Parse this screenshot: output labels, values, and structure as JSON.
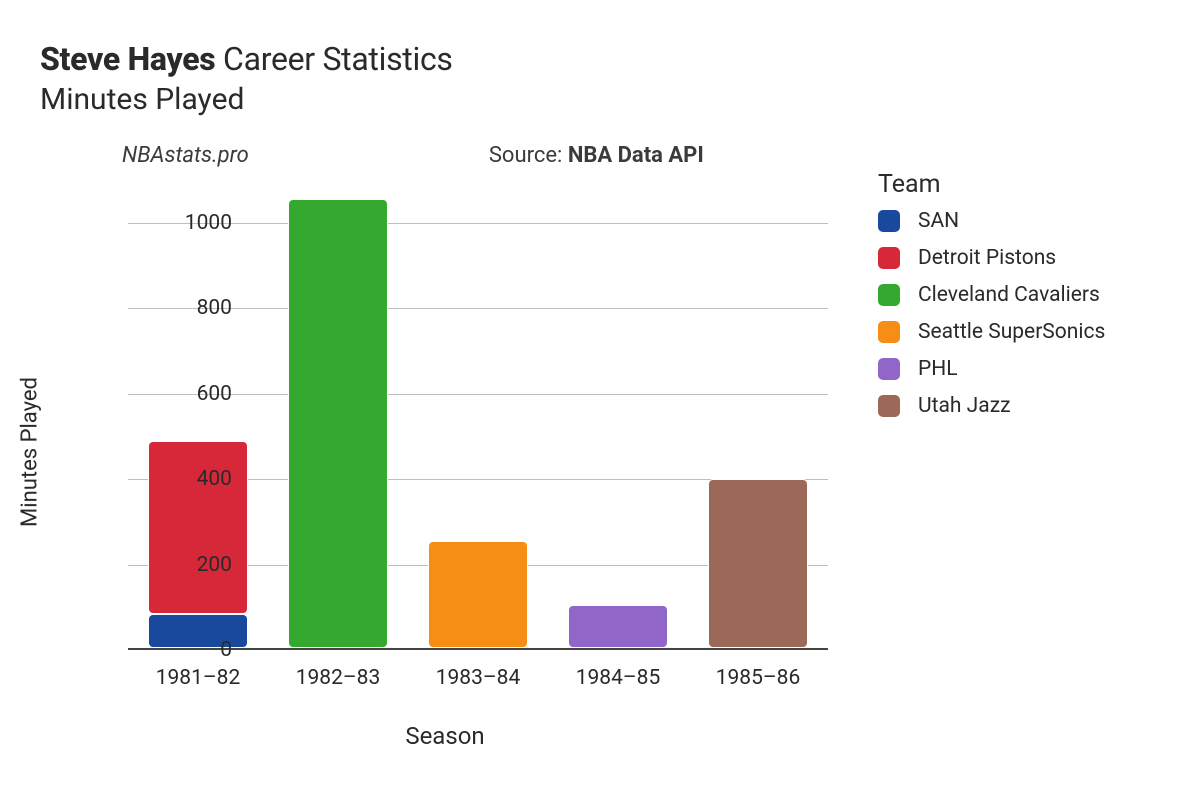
{
  "title": {
    "player_name": "Steve Hayes",
    "rest": " Career Statistics",
    "subtitle": "Minutes Played"
  },
  "watermark": "NBAstats.pro",
  "source_prefix": "Source: ",
  "source_name": "NBA Data API",
  "chart": {
    "type": "stacked-bar",
    "xlabel": "Season",
    "ylabel": "Minutes Played",
    "ylim": [
      0,
      1100
    ],
    "ytick_step": 200,
    "yticks": [
      0,
      200,
      400,
      600,
      800,
      1000
    ],
    "categories": [
      "1981–82",
      "1982–83",
      "1983–84",
      "1984–85",
      "1985–86"
    ],
    "background_color": "#ffffff",
    "grid_color": "#bfbfbf",
    "axis_color": "#444444",
    "bar_width": 0.72,
    "bar_gap": "#ffffff",
    "label_fontsize": 22,
    "tick_fontsize": 21,
    "series": [
      {
        "team": "SAN",
        "color": "#19499c",
        "values": [
          80,
          0,
          0,
          0,
          0
        ]
      },
      {
        "team": "Detroit Pistons",
        "color": "#d62839",
        "values": [
          405,
          0,
          0,
          0,
          0
        ]
      },
      {
        "team": "Cleveland Cavaliers",
        "color": "#35a82f",
        "values": [
          0,
          1050,
          0,
          0,
          0
        ]
      },
      {
        "team": "Seattle SuperSonics",
        "color": "#f68d14",
        "values": [
          0,
          0,
          250,
          0,
          0
        ]
      },
      {
        "team": "PHL",
        "color": "#9166c9",
        "values": [
          0,
          0,
          0,
          100,
          0
        ]
      },
      {
        "team": "Utah Jazz",
        "color": "#9c6857",
        "values": [
          0,
          0,
          0,
          0,
          395
        ]
      }
    ]
  },
  "legend": {
    "title": "Team",
    "fontsize": 21,
    "title_fontsize": 25
  }
}
